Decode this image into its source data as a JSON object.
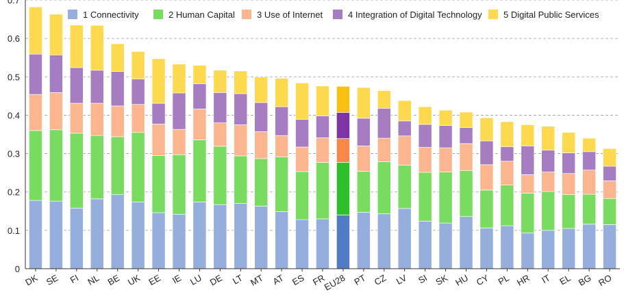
{
  "chart_data": {
    "type": "bar",
    "stacked": true,
    "categories": [
      "DK",
      "SE",
      "FI",
      "NL",
      "BE",
      "UK",
      "EE",
      "IE",
      "LU",
      "DE",
      "LT",
      "MT",
      "AT",
      "ES",
      "FR",
      "EU28",
      "PT",
      "CZ",
      "LV",
      "SI",
      "SK",
      "HU",
      "CY",
      "PL",
      "HR",
      "IT",
      "EL",
      "BG",
      "RO"
    ],
    "highlight_category": "EU28",
    "ylim": [
      0,
      0.7
    ],
    "yticks": [
      "0",
      "0.1",
      "0.2",
      "0.3",
      "0.4",
      "0.5",
      "0.6",
      "0.7"
    ],
    "grid": "horizontal dashed",
    "legend_position": "top",
    "series": [
      {
        "name": "1 Connectivity",
        "color": "#95aedb",
        "highlight_color": "#4f7cc4",
        "values": [
          0.178,
          0.176,
          0.158,
          0.182,
          0.193,
          0.174,
          0.146,
          0.142,
          0.174,
          0.167,
          0.17,
          0.163,
          0.149,
          0.128,
          0.13,
          0.14,
          0.147,
          0.143,
          0.157,
          0.124,
          0.119,
          0.136,
          0.106,
          0.112,
          0.093,
          0.1,
          0.105,
          0.116,
          0.115
        ]
      },
      {
        "name": "2 Human Capital",
        "color": "#79db5f",
        "highlight_color": "#2ec02c",
        "values": [
          0.182,
          0.186,
          0.195,
          0.165,
          0.151,
          0.181,
          0.149,
          0.155,
          0.162,
          0.152,
          0.124,
          0.124,
          0.142,
          0.125,
          0.147,
          0.137,
          0.107,
          0.136,
          0.113,
          0.127,
          0.133,
          0.12,
          0.099,
          0.106,
          0.104,
          0.101,
          0.088,
          0.078,
          0.068
        ]
      },
      {
        "name": "3 Use of Internet",
        "color": "#fbb68f",
        "highlight_color": "#f7884a",
        "values": [
          0.094,
          0.097,
          0.078,
          0.084,
          0.08,
          0.073,
          0.082,
          0.066,
          0.08,
          0.061,
          0.081,
          0.07,
          0.056,
          0.064,
          0.064,
          0.062,
          0.066,
          0.061,
          0.076,
          0.065,
          0.063,
          0.07,
          0.066,
          0.062,
          0.048,
          0.051,
          0.055,
          0.063,
          0.046
        ]
      },
      {
        "name": "4 Integration of Digital Technology",
        "color": "#a77dc1",
        "highlight_color": "#7d35a6",
        "values": [
          0.105,
          0.098,
          0.093,
          0.086,
          0.09,
          0.066,
          0.054,
          0.095,
          0.066,
          0.079,
          0.081,
          0.076,
          0.075,
          0.072,
          0.057,
          0.068,
          0.072,
          0.078,
          0.039,
          0.06,
          0.058,
          0.042,
          0.062,
          0.038,
          0.075,
          0.057,
          0.054,
          0.048,
          0.038
        ]
      },
      {
        "name": "5 Digital Public Services",
        "color": "#fcd94f",
        "highlight_color": "#f9c00f",
        "values": [
          0.123,
          0.106,
          0.111,
          0.117,
          0.072,
          0.072,
          0.116,
          0.075,
          0.048,
          0.058,
          0.059,
          0.066,
          0.074,
          0.095,
          0.078,
          0.068,
          0.08,
          0.046,
          0.053,
          0.046,
          0.04,
          0.04,
          0.06,
          0.065,
          0.055,
          0.062,
          0.053,
          0.035,
          0.046
        ]
      }
    ]
  }
}
